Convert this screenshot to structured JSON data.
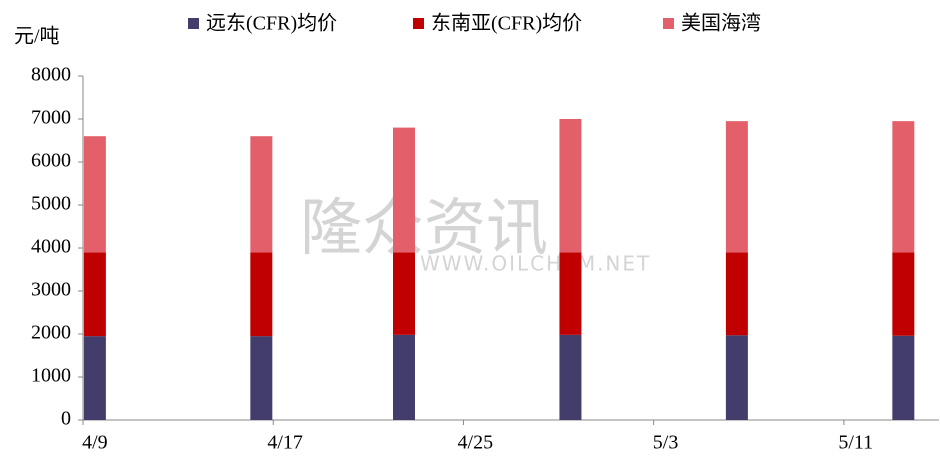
{
  "chart_data": {
    "type": "stacked_bar",
    "y_label": "元/吨",
    "watermark": "隆众资讯",
    "watermark_url": "WWW.OILCHEM.NET",
    "categories": [
      "4/9",
      null,
      null,
      null,
      null,
      null,
      null,
      null,
      "4/17",
      null,
      null,
      null,
      null,
      null,
      null,
      null,
      "4/25",
      null,
      null,
      null,
      null,
      null,
      null,
      null,
      "5/3",
      null,
      null,
      null,
      null,
      null,
      null,
      null,
      "5/11",
      null,
      null,
      null
    ],
    "series": [
      {
        "name": "远东(CFR)均价",
        "color": "#433d6b",
        "values": [
          1950,
          null,
          null,
          null,
          null,
          null,
          null,
          1950,
          null,
          null,
          null,
          null,
          null,
          1980,
          null,
          null,
          null,
          null,
          null,
          null,
          1980,
          null,
          null,
          null,
          null,
          null,
          null,
          1970,
          null,
          null,
          null,
          null,
          null,
          null,
          1960,
          null
        ]
      },
      {
        "name": "东南亚(CFR)均价",
        "color": "#c00000",
        "values": [
          1950,
          null,
          null,
          null,
          null,
          null,
          null,
          1950,
          null,
          null,
          null,
          null,
          null,
          1920,
          null,
          null,
          null,
          null,
          null,
          null,
          1920,
          null,
          null,
          null,
          null,
          null,
          null,
          1930,
          null,
          null,
          null,
          null,
          null,
          null,
          1940,
          null
        ]
      },
      {
        "name": "美国海湾",
        "color": "#e3606a",
        "values": [
          2700,
          null,
          null,
          null,
          null,
          null,
          null,
          2700,
          null,
          null,
          null,
          null,
          null,
          2900,
          null,
          null,
          null,
          null,
          null,
          null,
          3100,
          null,
          null,
          null,
          null,
          null,
          null,
          3050,
          null,
          null,
          null,
          null,
          null,
          null,
          3050,
          null
        ]
      }
    ],
    "ylim": [
      0,
      8000
    ],
    "yticks": [
      0,
      1000,
      2000,
      3000,
      4000,
      5000,
      6000,
      7000,
      8000
    ]
  }
}
